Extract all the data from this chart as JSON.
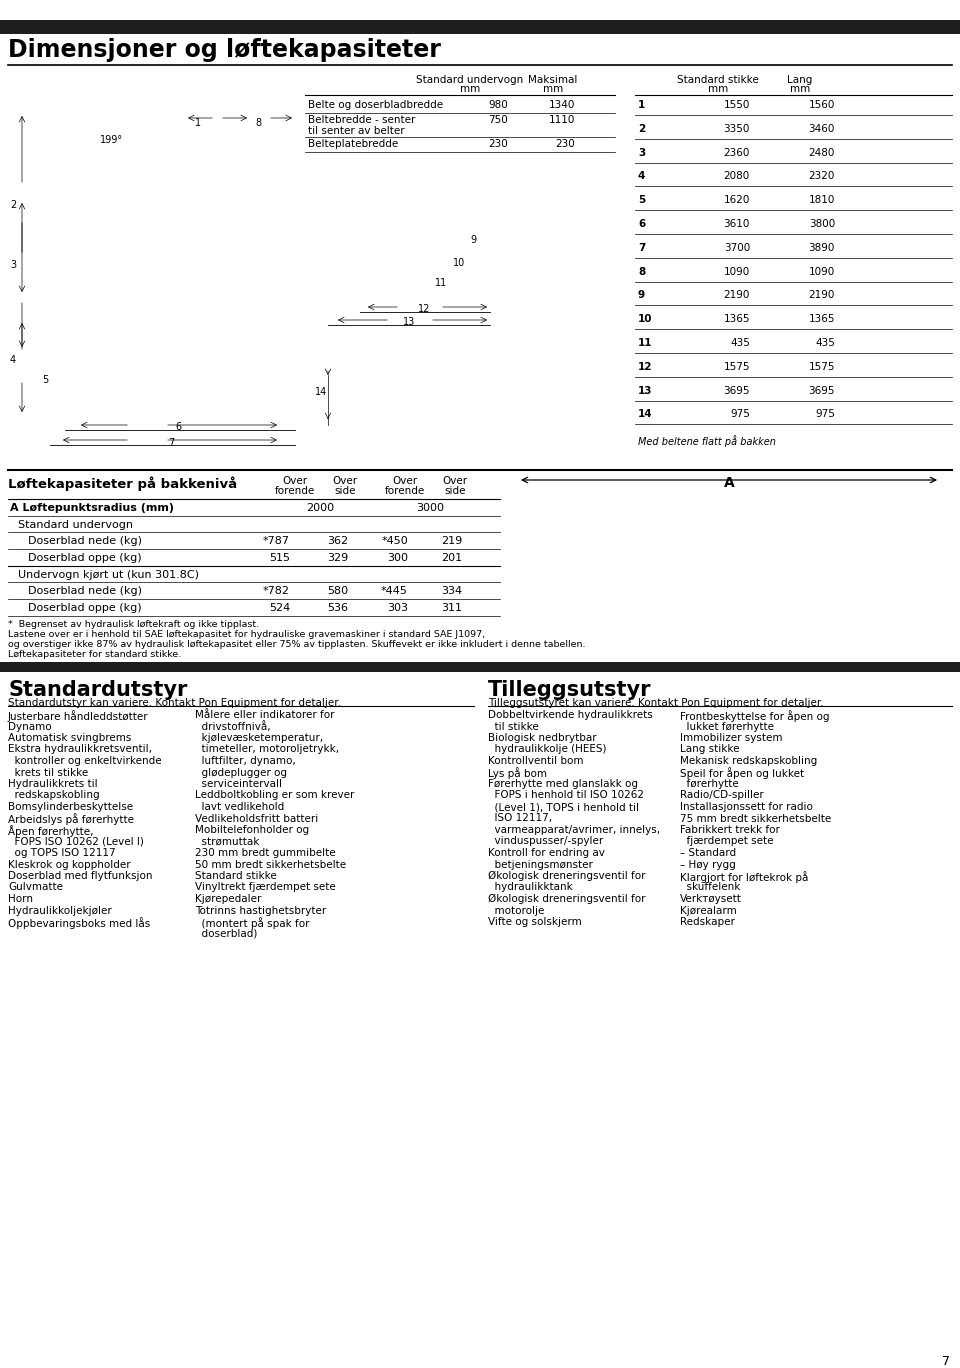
{
  "top_bar_color": "#1e1e1e",
  "section1_title": "Dimensjoner og løftekapasiteter",
  "dim_rows": [
    {
      "label1": "Belte og doserbladbredde",
      "label2": "",
      "v1": "980",
      "v2": "1340"
    },
    {
      "label1": "Beltebredde - senter",
      "label2": "til senter av belter",
      "v1": "750",
      "v2": "1110"
    },
    {
      "label1": "Belteplatebredde",
      "label2": "",
      "v1": "230",
      "v2": "230"
    }
  ],
  "stikke_rows": [
    [
      "1",
      "1550",
      "1560"
    ],
    [
      "2",
      "3350",
      "3460"
    ],
    [
      "3",
      "2360",
      "2480"
    ],
    [
      "4",
      "2080",
      "2320"
    ],
    [
      "5",
      "1620",
      "1810"
    ],
    [
      "6",
      "3610",
      "3800"
    ],
    [
      "7",
      "3700",
      "3890"
    ],
    [
      "8",
      "1090",
      "1090"
    ],
    [
      "9",
      "2190",
      "2190"
    ],
    [
      "10",
      "1365",
      "1365"
    ],
    [
      "11",
      "435",
      "435"
    ],
    [
      "12",
      "1575",
      "1575"
    ],
    [
      "13",
      "3695",
      "3695"
    ],
    [
      "14",
      "975",
      "975"
    ]
  ],
  "stikke_footnote": "Med beltene flatt på bakken",
  "lift_title": "Løftekapasiteter på bakkenivå",
  "lift_col1_h1": "Over",
  "lift_col1_h2": "forende",
  "lift_col2_h1": "Over",
  "lift_col2_h2": "side",
  "lift_col3_h1": "Over",
  "lift_col3_h2": "forende",
  "lift_col4_h1": "Over",
  "lift_col4_h2": "side",
  "lift_radius_label": "A Løftepunktsradius (mm)",
  "lift_r1": "2000",
  "lift_r2": "3000",
  "lift_sub1": "Standard undervogn",
  "lift_sub2": "Undervogn kjørt ut (kun 301.8C)",
  "lift_rows": [
    [
      "Doserblad nede (kg)",
      "*787",
      "362",
      "*450",
      "219"
    ],
    [
      "Doserblad oppe (kg)",
      "515",
      "329",
      "300",
      "201"
    ],
    [
      "Doserblad nede (kg)",
      "*782",
      "580",
      "*445",
      "334"
    ],
    [
      "Doserblad oppe (kg)",
      "524",
      "536",
      "303",
      "311"
    ]
  ],
  "fn1": "*  Begrenset av hydraulisk løftekraft og ikke tipplast.",
  "fn2": "Lastene over er i henhold til SAE løftekapasitet for hydrauliske gravemaskiner i standard SAE J1097,",
  "fn3": "og overstiger ikke 87% av hydraulisk løftekapasitet eller 75% av tipplasten. Skuffevekt er ikke inkludert i denne tabellen.",
  "fn4": "Løftekapasiteter for standard stikke.",
  "std_title": "Standardutstyr",
  "std_subtitle": "Standardutstyr kan variere. Kontakt Pon Equipment for detaljer.",
  "std_col1": [
    "Justerbare håndleddstøtter",
    "Dynamo",
    "Automatisk svingbrems",
    "Ekstra hydraulikkretsventil,",
    "  kontroller og enkeltvirkende",
    "  krets til stikke",
    "Hydraulikkrets til",
    "  redskapskobling",
    "Bomsylinderbeskyttelse",
    "Arbeidslys på førerhytte",
    "Åpen førerhytte,",
    "  FOPS ISO 10262 (Level I)",
    "  og TOPS ISO 12117",
    "Kleskrok og koppholder",
    "Doserblad med flytfunksjon",
    "Gulvmatte",
    "Horn",
    "Hydraulikkoljekjøler",
    "Oppbevaringsboks med lås"
  ],
  "std_col2": [
    "Målere eller indikatorer for",
    "  drivstoffnivå,",
    "  kjølevæsketemperatur,",
    "  timeteller, motoroljetrykk,",
    "  luftfilter, dynamo,",
    "  glødeplugger og",
    "  serviceintervall",
    "Leddboltkobling er som krever",
    "  lavt vedlikehold",
    "Vedlikeholdsfritt batteri",
    "Mobiltelefonholder og",
    "  strømuttak",
    "230 mm bredt gummibelte",
    "50 mm bredt sikkerhetsbelte",
    "Standard stikke",
    "Vinyltrekt fjærdempet sete",
    "Kjørepedaler",
    "Totrinns hastighetsbryter",
    "  (montert på spak for",
    "  doserblad)"
  ],
  "til_title": "Tilleggsutstyr",
  "til_subtitle": "Tilleggsutstyret kan variere. Kontakt Pon Equipment for detaljer.",
  "til_col1": [
    "Dobbeltvirkende hydraulikkrets",
    "  til stikke",
    "Biologisk nedbrytbar",
    "  hydraulikkolje (HEES)",
    "Kontrollventil bom",
    "Lys på bom",
    "Førerhytte med glanslakk og",
    "  FOPS i henhold til ISO 10262",
    "  (Level 1), TOPS i henhold til",
    "  ISO 12117,",
    "  varmeapparat/avrimer, innelys,",
    "  vinduspusser/-spyler",
    "Kontroll for endring av",
    "  betjeningsmønster",
    "Økologisk dreneringsventil for",
    "  hydraulikktank",
    "Økologisk dreneringsventil for",
    "  motorolje",
    "Vifte og solskjerm"
  ],
  "til_col2": [
    "Frontbeskyttelse for åpen og",
    "  lukket førerhytte",
    "Immobilizer system",
    "Lang stikke",
    "Mekanisk redskapskobling",
    "Speil for åpen og lukket",
    "  førerhytte",
    "Radio/CD-spiller",
    "Installasjonssett for radio",
    "75 mm bredt sikkerhetsbelte",
    "Fabrikkert trekk for",
    "  fjærdempet sete",
    "– Standard",
    "– Høy rygg",
    "Klargjort for løftekrok på",
    "  skuffelenk",
    "Verkтøysett",
    "Kjørealarm",
    "Redskaper"
  ],
  "page_number": "7"
}
